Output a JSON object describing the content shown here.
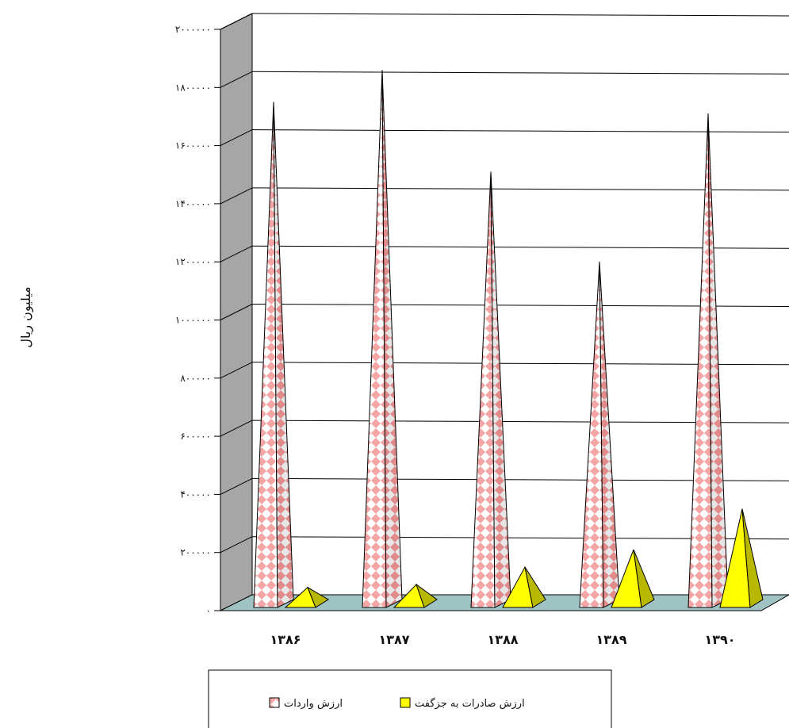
{
  "chart_data": {
    "type": "bar",
    "style": "3d-pyramid",
    "categories": [
      "۱۳۸۶",
      "۱۳۸۷",
      "۱۳۸۸",
      "۱۳۸۹",
      "۱۳۹۰"
    ],
    "series": [
      {
        "name": "ارزش واردات",
        "values": [
          1750000,
          1860000,
          1510000,
          1200000,
          1710000
        ],
        "color": "#f4a6a6"
      },
      {
        "name": "ارزش صادرات به جزگفت",
        "values": [
          80000,
          90000,
          150000,
          210000,
          350000
        ],
        "color": "#ffff00"
      }
    ],
    "ylabel": "میلیون ریال",
    "ylim": [
      0,
      2000000
    ],
    "yticks": [
      {
        "value": 0,
        "label": "۰"
      },
      {
        "value": 200000,
        "label": "۲۰۰۰۰۰"
      },
      {
        "value": 400000,
        "label": "۴۰۰۰۰۰"
      },
      {
        "value": 600000,
        "label": "۶۰۰۰۰۰"
      },
      {
        "value": 800000,
        "label": "۸۰۰۰۰۰"
      },
      {
        "value": 1000000,
        "label": "۱۰۰۰۰۰۰"
      },
      {
        "value": 1200000,
        "label": "۱۲۰۰۰۰۰"
      },
      {
        "value": 1400000,
        "label": "۱۴۰۰۰۰۰"
      },
      {
        "value": 1600000,
        "label": "۱۶۰۰۰۰۰"
      },
      {
        "value": 1800000,
        "label": "۱۸۰۰۰۰۰"
      },
      {
        "value": 2000000,
        "label": "۲۰۰۰۰۰۰"
      }
    ],
    "grid": true,
    "legend": "bottom",
    "colors": {
      "wall_side": "#a6a6a6",
      "floor": "#9fc3c3",
      "grid": "#000000"
    }
  }
}
